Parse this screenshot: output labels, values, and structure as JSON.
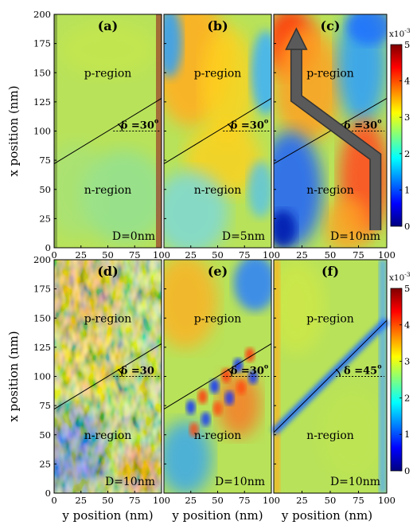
{
  "chart_data": {
    "type": "heatmap",
    "layout": "2x3 grid of panels",
    "xlabel": "y position (nm)",
    "ylabel": "x position (nm)",
    "xlim": [
      0,
      100
    ],
    "ylim": [
      0,
      200
    ],
    "x_ticks": [
      "0",
      "25",
      "50",
      "75",
      "100"
    ],
    "x_ticks_inner": [
      "25",
      "50",
      "75",
      "100"
    ],
    "y_ticks": [
      "0",
      "25",
      "50",
      "75",
      "100",
      "125",
      "150",
      "175",
      "200"
    ],
    "colorbar": {
      "range": [
        0,
        5
      ],
      "ticks": [
        "0",
        "1",
        "2",
        "3",
        "4",
        "5"
      ],
      "multiplier": "x10",
      "exponent": "-3",
      "colormap": "jet"
    },
    "panels": [
      {
        "label": "(a)",
        "top_region": "p-region",
        "bottom_region": "n-region",
        "D": "D=0nm",
        "delta_text": "δ =30",
        "deg": "o",
        "line_x_at_y0": 72,
        "line_x_at_y100": 128,
        "pattern": "uniform"
      },
      {
        "label": "(b)",
        "top_region": "p-region",
        "bottom_region": "n-region",
        "D": "D=5nm",
        "delta_text": "δ =30",
        "deg": "o",
        "line_x_at_y0": 72,
        "line_x_at_y100": 128,
        "pattern": "gradient"
      },
      {
        "label": "(c)",
        "top_region": "p-region",
        "bottom_region": "n-region",
        "D": "D=10nm",
        "delta_text": "δ =30",
        "deg": "o",
        "line_x_at_y0": 72,
        "line_x_at_y100": 128,
        "pattern": "strong",
        "arrow": true
      },
      {
        "label": "(d)",
        "top_region": "p-region",
        "bottom_region": "n-region",
        "D": "D=10nm",
        "delta_text": "δ =30",
        "deg": "",
        "line_x_at_y0": 72,
        "line_x_at_y100": 128,
        "pattern": "noisy"
      },
      {
        "label": "(e)",
        "top_region": "p-region",
        "bottom_region": "n-region",
        "D": "D=10nm",
        "delta_text": "δ =30",
        "deg": "o",
        "line_x_at_y0": 72,
        "line_x_at_y100": 128,
        "pattern": "ripple"
      },
      {
        "label": "(f)",
        "top_region": "p-region",
        "bottom_region": "n-region",
        "D": "D=10nm",
        "delta_text": "δ =45",
        "deg": "o",
        "line_x_at_y0": 52,
        "line_x_at_y100": 148,
        "pattern": "band"
      }
    ],
    "colors": {
      "dark_blue": "#00007f",
      "blue": "#0000ff",
      "cyan": "#00ffff",
      "yellow": "#ffff00",
      "red": "#ff0000",
      "dark_red": "#7f0000",
      "field_base": "#b8e25a",
      "arrow": "#5a5a5a"
    }
  }
}
